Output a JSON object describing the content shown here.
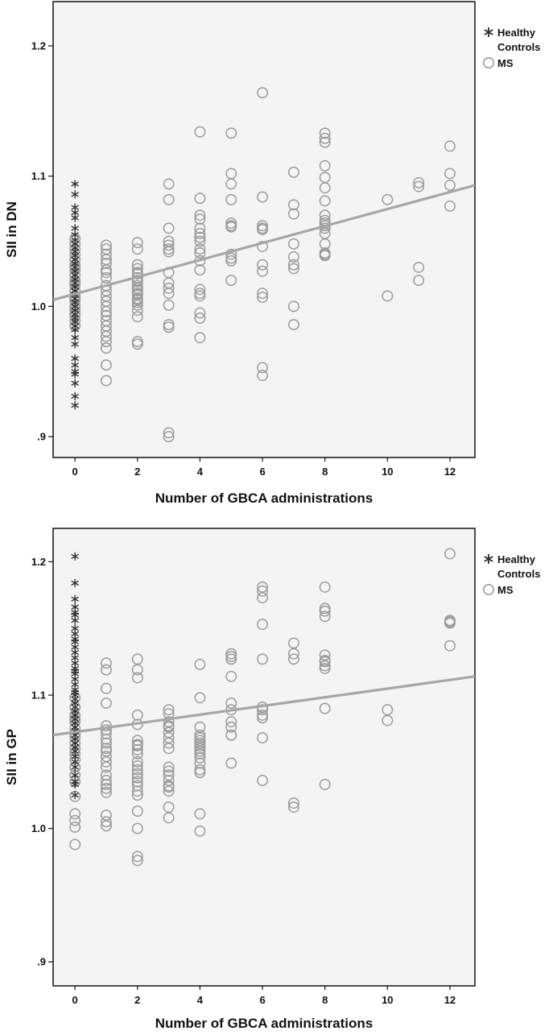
{
  "colors": {
    "ms": "#9a9a9a",
    "hc": "#2a2a2a",
    "fit": "#a6a6a6",
    "bg": "#f4f4f4",
    "frame": "#111111"
  },
  "chart_data": [
    {
      "type": "scatter",
      "xlabel": "Number of GBCA administrations",
      "ylabel": "SII in DN",
      "xlim": [
        -0.7,
        12.8
      ],
      "ylim": [
        0.884,
        1.234
      ],
      "x_ticks": [
        0,
        2,
        4,
        6,
        8,
        10,
        12
      ],
      "x_tick_labels": [
        "0",
        "2",
        "4",
        "6",
        "8",
        "10",
        "12"
      ],
      "y_ticks": [
        0.9,
        1.0,
        1.1,
        1.2
      ],
      "y_tick_labels": [
        ".9",
        "1.0",
        "1.1",
        "1.2"
      ],
      "legend": {
        "position": "right",
        "entries": [
          "Healthy Controls",
          "MS"
        ]
      },
      "fit_line": {
        "x": [
          -0.7,
          12.8
        ],
        "y": [
          1.005,
          1.093
        ]
      },
      "series": [
        {
          "name": "Healthy Controls",
          "marker": "star",
          "x": [
            0,
            0,
            0,
            0,
            0,
            0,
            0,
            0,
            0,
            0,
            0,
            0,
            0,
            0,
            0,
            0,
            0,
            0,
            0,
            0,
            0,
            0,
            0,
            0,
            0,
            0,
            0,
            0,
            0,
            0,
            0,
            0,
            0,
            0,
            0,
            0,
            0,
            0,
            0,
            0
          ],
          "y": [
            1.094,
            1.086,
            1.076,
            1.072,
            1.068,
            1.06,
            1.055,
            1.051,
            1.048,
            1.045,
            1.042,
            1.039,
            1.036,
            1.033,
            1.03,
            1.027,
            1.024,
            1.021,
            1.018,
            1.015,
            1.012,
            1.009,
            1.006,
            1.003,
            1.0,
            0.997,
            0.994,
            0.991,
            0.988,
            0.985,
            0.982,
            0.976,
            0.971,
            0.96,
            0.955,
            0.95,
            0.941,
            0.931,
            0.924,
            0.948
          ]
        },
        {
          "name": "MS",
          "marker": "circle",
          "x": [
            0,
            0,
            0,
            0,
            0,
            0,
            0,
            0,
            0,
            0,
            0,
            0,
            0,
            0,
            0,
            0,
            0,
            0,
            0,
            0,
            0,
            0,
            1,
            1,
            1,
            1,
            1,
            1,
            1,
            1,
            1,
            1,
            1,
            1,
            1,
            1,
            1,
            1,
            1,
            1,
            1,
            1,
            1,
            1,
            1,
            2,
            2,
            2,
            2,
            2,
            2,
            2,
            2,
            2,
            2,
            2,
            2,
            2,
            2,
            2,
            2,
            2,
            2,
            2,
            2,
            2,
            2,
            3,
            3,
            3,
            3,
            3,
            3,
            3,
            3,
            3,
            3,
            3,
            3,
            3,
            3,
            3,
            3,
            4,
            4,
            4,
            4,
            4,
            4,
            4,
            4,
            4,
            4,
            4,
            4,
            4,
            4,
            4,
            4,
            4,
            4,
            5,
            5,
            5,
            5,
            5,
            5,
            5,
            5,
            5,
            5,
            5,
            6,
            6,
            6,
            6,
            6,
            6,
            6,
            6,
            6,
            6,
            6,
            6,
            7,
            7,
            7,
            7,
            7,
            7,
            7,
            7,
            7,
            8,
            8,
            8,
            8,
            8,
            8,
            8,
            8,
            8,
            8,
            8,
            8,
            8,
            8,
            8,
            8,
            8,
            10,
            10,
            11,
            11,
            11,
            11,
            12,
            12,
            12,
            12
          ],
          "y": [
            1.052,
            1.048,
            1.044,
            1.04,
            1.036,
            1.032,
            1.028,
            1.024,
            1.02,
            1.016,
            1.012,
            1.008,
            1.004,
            1.0,
            0.997,
            0.993,
            0.989,
            0.985,
            1.03,
            1.018,
            1.006,
            0.994,
            1.047,
            1.044,
            1.033,
            1.026,
            1.016,
            1.012,
            1.008,
            1.004,
            1.0,
            0.996,
            0.993,
            0.989,
            0.985,
            0.981,
            0.977,
            0.973,
            0.968,
            0.955,
            0.943,
            1.04,
            1.036,
            1.028,
            1.022,
            1.049,
            1.044,
            1.032,
            1.029,
            1.026,
            1.022,
            1.019,
            1.016,
            1.012,
            1.009,
            1.005,
            1.001,
            0.997,
            0.992,
            0.973,
            0.971,
            1.025,
            1.02,
            1.014,
            1.01,
            1.006,
            1.003,
            1.094,
            1.082,
            1.06,
            1.05,
            1.044,
            1.042,
            1.026,
            1.018,
            1.014,
            1.01,
            1.001,
            0.986,
            0.984,
            0.903,
            0.9,
            1.047,
            1.134,
            1.083,
            1.07,
            1.067,
            1.06,
            1.056,
            1.05,
            1.044,
            1.035,
            1.028,
            1.013,
            1.01,
            1.008,
            0.995,
            0.991,
            0.976,
            1.053,
            1.041,
            1.133,
            1.102,
            1.094,
            1.082,
            1.064,
            1.062,
            1.061,
            1.04,
            1.037,
            1.035,
            1.02,
            1.164,
            1.084,
            1.062,
            1.059,
            1.046,
            1.032,
            1.027,
            1.01,
            1.007,
            0.953,
            0.947,
            1.06,
            1.103,
            1.078,
            1.071,
            1.048,
            1.038,
            1.032,
            1.029,
            1.0,
            0.986,
            1.133,
            1.129,
            1.126,
            1.108,
            1.099,
            1.091,
            1.081,
            1.07,
            1.066,
            1.064,
            1.062,
            1.06,
            1.056,
            1.048,
            1.041,
            1.04,
            1.039,
            1.082,
            1.008,
            1.095,
            1.092,
            1.03,
            1.02,
            1.123,
            1.102,
            1.093,
            1.077
          ]
        }
      ]
    },
    {
      "type": "scatter",
      "xlabel": "Number of GBCA administrations",
      "ylabel": "SII in GP",
      "xlim": [
        -0.7,
        12.8
      ],
      "ylim": [
        0.882,
        1.225
      ],
      "x_ticks": [
        0,
        2,
        4,
        6,
        8,
        10,
        12
      ],
      "x_tick_labels": [
        "0",
        "2",
        "4",
        "6",
        "8",
        "10",
        "12"
      ],
      "y_ticks": [
        0.9,
        1.0,
        1.1,
        1.2
      ],
      "y_tick_labels": [
        ".9",
        "1.0",
        "1.1",
        "1.2"
      ],
      "legend": {
        "position": "right",
        "entries": [
          "Healthy Controls",
          "MS"
        ]
      },
      "fit_line": {
        "x": [
          -0.7,
          12.8
        ],
        "y": [
          1.07,
          1.114
        ]
      },
      "series": [
        {
          "name": "Healthy Controls",
          "marker": "star",
          "x": [
            0,
            0,
            0,
            0,
            0,
            0,
            0,
            0,
            0,
            0,
            0,
            0,
            0,
            0,
            0,
            0,
            0,
            0,
            0,
            0,
            0,
            0,
            0,
            0,
            0,
            0,
            0,
            0,
            0,
            0,
            0,
            0,
            0,
            0,
            0,
            0,
            0,
            0,
            0,
            0,
            0,
            0,
            0,
            0
          ],
          "y": [
            1.204,
            1.184,
            1.172,
            1.166,
            1.16,
            1.156,
            1.15,
            1.146,
            1.14,
            1.136,
            1.132,
            1.128,
            1.124,
            1.12,
            1.116,
            1.112,
            1.108,
            1.104,
            1.1,
            1.097,
            1.094,
            1.091,
            1.088,
            1.085,
            1.082,
            1.079,
            1.076,
            1.073,
            1.07,
            1.067,
            1.064,
            1.061,
            1.058,
            1.054,
            1.05,
            1.046,
            1.04,
            1.035,
            1.033,
            1.025,
            1.162,
            1.142,
            1.118,
            1.102
          ]
        },
        {
          "name": "MS",
          "marker": "circle",
          "x": [
            0,
            0,
            0,
            0,
            0,
            0,
            0,
            0,
            0,
            0,
            0,
            0,
            0,
            0,
            0,
            0,
            0,
            0,
            0,
            0,
            1,
            1,
            1,
            1,
            1,
            1,
            1,
            1,
            1,
            1,
            1,
            1,
            1,
            1,
            1,
            1,
            1,
            1,
            1,
            1,
            1,
            1,
            2,
            2,
            2,
            2,
            2,
            2,
            2,
            2,
            2,
            2,
            2,
            2,
            2,
            2,
            2,
            2,
            2,
            2,
            2,
            2,
            2,
            2,
            2,
            3,
            3,
            3,
            3,
            3,
            3,
            3,
            3,
            3,
            3,
            3,
            3,
            3,
            3,
            3,
            3,
            3,
            3,
            4,
            4,
            4,
            4,
            4,
            4,
            4,
            4,
            4,
            4,
            4,
            4,
            4,
            4,
            4,
            4,
            4,
            5,
            5,
            5,
            5,
            5,
            5,
            5,
            5,
            5,
            5,
            5,
            6,
            6,
            6,
            6,
            6,
            6,
            6,
            6,
            6,
            6,
            6,
            7,
            7,
            7,
            7,
            7,
            8,
            8,
            8,
            8,
            8,
            8,
            8,
            8,
            8,
            8,
            8,
            8,
            10,
            10,
            12,
            12,
            12,
            12,
            12
          ],
          "y": [
            1.098,
            1.091,
            1.085,
            1.08,
            1.075,
            1.071,
            1.068,
            1.064,
            1.06,
            1.056,
            1.052,
            1.046,
            1.04,
            1.035,
            1.024,
            1.011,
            1.006,
            1.001,
            0.988,
            1.082,
            1.124,
            1.119,
            1.105,
            1.094,
            1.077,
            1.074,
            1.071,
            1.067,
            1.064,
            1.058,
            1.054,
            1.05,
            1.036,
            1.033,
            1.03,
            1.027,
            1.01,
            1.005,
            1.002,
            1.046,
            1.04,
            1.06,
            1.127,
            1.119,
            1.113,
            1.085,
            1.078,
            1.066,
            1.063,
            1.059,
            1.056,
            1.05,
            1.044,
            1.041,
            1.038,
            1.035,
            1.032,
            1.028,
            1.025,
            1.013,
            1.0,
            0.979,
            0.976,
            1.062,
            1.047,
            1.089,
            1.086,
            1.08,
            1.076,
            1.072,
            1.068,
            1.064,
            1.043,
            1.04,
            1.036,
            1.032,
            1.028,
            1.016,
            1.008,
            1.077,
            1.06,
            1.046,
            1.031,
            1.123,
            1.098,
            1.076,
            1.068,
            1.066,
            1.064,
            1.062,
            1.06,
            1.056,
            1.053,
            1.049,
            1.044,
            1.042,
            1.011,
            0.998,
            1.07,
            1.058,
            1.131,
            1.129,
            1.114,
            1.094,
            1.08,
            1.076,
            1.07,
            1.07,
            1.049,
            1.127,
            1.089,
            1.181,
            1.173,
            1.153,
            1.127,
            1.091,
            1.089,
            1.083,
            1.068,
            1.036,
            1.178,
            1.085,
            1.139,
            1.127,
            1.019,
            1.016,
            1.131,
            1.181,
            1.165,
            1.163,
            1.159,
            1.13,
            1.125,
            1.122,
            1.12,
            1.09,
            1.033,
            1.163,
            1.126,
            1.089,
            1.081,
            1.206,
            1.156,
            1.154,
            1.137,
            1.155
          ]
        }
      ]
    }
  ]
}
